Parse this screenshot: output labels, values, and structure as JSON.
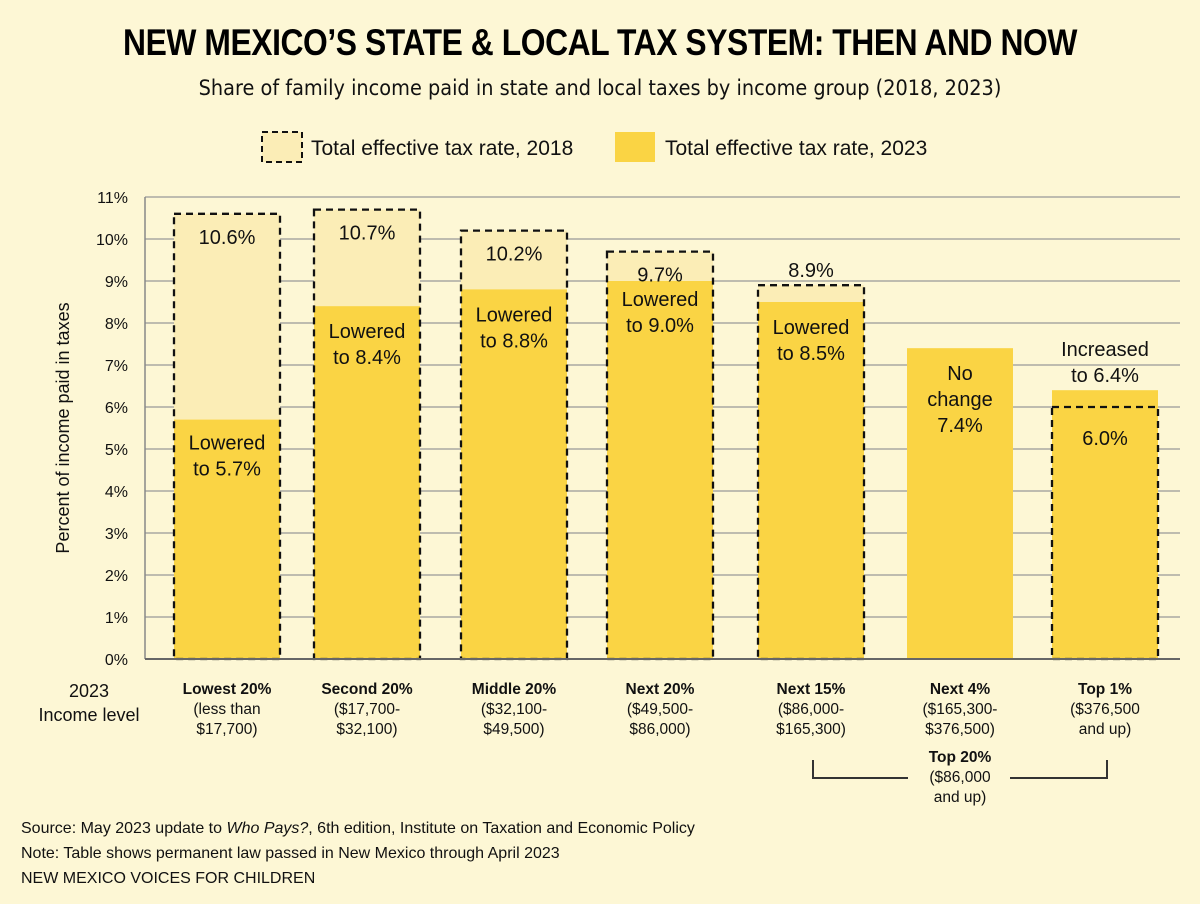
{
  "title": "NEW MEXICO’S STATE & LOCAL TAX SYSTEM: THEN AND NOW",
  "subtitle": "Share of family income paid in state and local taxes by income group (2018, 2023)",
  "colors": {
    "background": "#fdf7d5",
    "rate_2018": "#fbedb6",
    "rate_2023": "#fad444"
  },
  "chart_data": {
    "type": "bar",
    "ylabel": "Percent of income paid in taxes",
    "xlabel": "2023 Income level",
    "ylim": [
      0,
      11
    ],
    "yticks": [
      "0%",
      "1%",
      "2%",
      "3%",
      "4%",
      "5%",
      "6%",
      "7%",
      "8%",
      "9%",
      "10%",
      "11%"
    ],
    "grid": true,
    "legend_position": "top",
    "categories": [
      {
        "name": "Lowest 20%",
        "range": [
          "(less than",
          "$17,700)"
        ]
      },
      {
        "name": "Second 20%",
        "range": [
          "($17,700-",
          "$32,100)"
        ]
      },
      {
        "name": "Middle 20%",
        "range": [
          "($32,100-",
          "$49,500)"
        ]
      },
      {
        "name": "Next 20%",
        "range": [
          "($49,500-",
          "$86,000)"
        ]
      },
      {
        "name": "Next 15%",
        "range": [
          "($86,000-",
          "$165,300)"
        ]
      },
      {
        "name": "Next 4%",
        "range": [
          "($165,300-",
          "$376,500)"
        ]
      },
      {
        "name": "Top 1%",
        "range": [
          "($376,500",
          "and up)"
        ]
      }
    ],
    "series": [
      {
        "name": "Total effective tax rate, 2018",
        "style": "dashed-outline",
        "values": [
          10.6,
          10.7,
          10.2,
          9.7,
          8.9,
          7.4,
          6.0
        ],
        "labels": [
          "10.6%",
          "10.7%",
          "10.2%",
          "9.7%",
          "8.9%",
          "",
          "6.0%"
        ]
      },
      {
        "name": "Total effective tax rate, 2023",
        "style": "filled",
        "values": [
          5.7,
          8.4,
          8.8,
          9.0,
          8.5,
          7.4,
          6.4
        ],
        "labels": [
          [
            "Lowered",
            "to 5.7%"
          ],
          [
            "Lowered",
            "to 8.4%"
          ],
          [
            "Lowered",
            "to 8.8%"
          ],
          [
            "Lowered",
            "to 9.0%"
          ],
          [
            "Lowered",
            "to 8.5%"
          ],
          [
            "No",
            "change",
            "7.4%"
          ],
          [
            "Increased",
            "to 6.4%"
          ]
        ]
      }
    ],
    "group_annotation": {
      "name": "Top 20%",
      "range": [
        "($86,000",
        "and up)"
      ]
    }
  },
  "notes": {
    "source_prefix": "Source: May 2023 update to ",
    "source_title": "Who Pays?",
    "source_suffix": ", 6th edition, Institute on Taxation and Economic Policy",
    "note": "Note: Table shows permanent law passed in New Mexico through April 2023",
    "org": "NEW MEXICO VOICES FOR CHILDREN"
  }
}
